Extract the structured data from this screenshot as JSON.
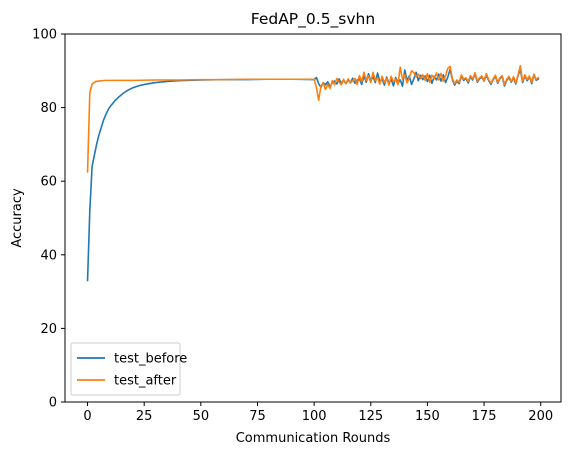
{
  "chart_data": {
    "type": "line",
    "title": "FedAP_0.5_svhn",
    "xlabel": "Communication Rounds",
    "ylabel": "Accuracy",
    "xlim": [
      -9.95,
      208.95
    ],
    "ylim": [
      0,
      100
    ],
    "xticks": [
      0,
      25,
      50,
      75,
      100,
      125,
      150,
      175,
      200
    ],
    "yticks": [
      0,
      20,
      40,
      60,
      80,
      100
    ],
    "grid": false,
    "legend_position": "lower-left",
    "series": [
      {
        "name": "test_before",
        "color": "#1f77b4",
        "x": [
          0,
          1,
          2,
          3,
          4,
          5,
          6,
          7,
          8,
          9,
          10,
          12,
          14,
          16,
          18,
          20,
          23,
          26,
          30,
          35,
          40,
          45,
          50,
          60,
          70,
          80,
          90,
          100,
          101,
          102,
          103,
          104,
          105,
          106,
          107,
          108,
          109,
          110,
          111,
          112,
          113,
          114,
          115,
          116,
          117,
          118,
          119,
          120,
          121,
          122,
          123,
          124,
          125,
          126,
          127,
          128,
          129,
          130,
          131,
          132,
          133,
          134,
          135,
          136,
          137,
          138,
          139,
          140,
          141,
          142,
          143,
          144,
          145,
          146,
          147,
          148,
          149,
          150,
          151,
          152,
          153,
          154,
          155,
          156,
          157,
          158,
          159,
          160,
          161,
          162,
          163,
          164,
          165,
          166,
          167,
          168,
          169,
          170,
          171,
          172,
          173,
          174,
          175,
          176,
          177,
          178,
          179,
          180,
          181,
          182,
          183,
          184,
          185,
          186,
          187,
          188,
          189,
          190,
          191,
          192,
          193,
          194,
          195,
          196,
          197,
          198,
          199
        ],
        "y": [
          33,
          52,
          64,
          67,
          70,
          72.5,
          74.5,
          76.5,
          78,
          79.3,
          80.3,
          81.8,
          83,
          84,
          84.8,
          85.4,
          86,
          86.4,
          86.8,
          87.1,
          87.3,
          87.4,
          87.5,
          87.6,
          87.6,
          87.7,
          87.7,
          87.6,
          88.2,
          86.5,
          85.5,
          86.8,
          86.2,
          87,
          85.6,
          86.8,
          87.2,
          86.4,
          87.8,
          86.6,
          87.4,
          86.5,
          87.6,
          86.7,
          88,
          86.6,
          87.5,
          87.8,
          86.3,
          88.6,
          86.9,
          89.2,
          87.2,
          88.4,
          86.8,
          89.4,
          87,
          87.8,
          86.1,
          88.3,
          86.6,
          87.7,
          85.9,
          88.2,
          86.7,
          87.5,
          85.8,
          90.2,
          87.4,
          88.6,
          86.3,
          87.8,
          89.6,
          87.3,
          88.8,
          87.6,
          88.6,
          87.1,
          88.8,
          86.6,
          88.5,
          87.5,
          89.1,
          87.2,
          88.9,
          86.8,
          88.3,
          90.4,
          87.6,
          86.1,
          87.2,
          86.5,
          88.6,
          87.4,
          87.9,
          86.7,
          88.4,
          87.5,
          89.2,
          86.9,
          87.8,
          88.3,
          87.2,
          88.8,
          87.4,
          86.3,
          87.6,
          88.5,
          86.6,
          87.9,
          88.4,
          85.9,
          87.4,
          88.2,
          86.9,
          88.1,
          86.4,
          88.7,
          90.4,
          86.8,
          88.6,
          87.3,
          88.4,
          86.5,
          88.9,
          87.4,
          87.8
        ]
      },
      {
        "name": "test_after",
        "color": "#ff7f0e",
        "x": [
          0,
          1,
          2,
          3,
          4,
          5,
          6,
          8,
          10,
          15,
          20,
          30,
          40,
          50,
          60,
          70,
          80,
          90,
          100,
          101,
          102,
          103,
          104,
          105,
          106,
          107,
          108,
          109,
          110,
          111,
          112,
          113,
          114,
          115,
          116,
          117,
          118,
          119,
          120,
          121,
          122,
          123,
          124,
          125,
          126,
          127,
          128,
          129,
          130,
          131,
          132,
          133,
          134,
          135,
          136,
          137,
          138,
          139,
          140,
          141,
          142,
          143,
          144,
          145,
          146,
          147,
          148,
          149,
          150,
          151,
          152,
          153,
          154,
          155,
          156,
          157,
          158,
          159,
          160,
          161,
          162,
          163,
          164,
          165,
          166,
          167,
          168,
          169,
          170,
          171,
          172,
          173,
          174,
          175,
          176,
          177,
          178,
          179,
          180,
          181,
          182,
          183,
          184,
          185,
          186,
          187,
          188,
          189,
          190,
          191,
          192,
          193,
          194,
          195,
          196,
          197,
          198,
          199
        ],
        "y": [
          62.5,
          84,
          86.4,
          86.9,
          87.1,
          87.2,
          87.3,
          87.4,
          87.4,
          87.4,
          87.4,
          87.5,
          87.5,
          87.6,
          87.6,
          87.7,
          87.7,
          87.7,
          87.7,
          85.5,
          82,
          85.8,
          86.8,
          84.9,
          86.3,
          85.2,
          87.3,
          86.2,
          87.9,
          87,
          86.2,
          87.7,
          86.5,
          87.8,
          86.8,
          87.3,
          87.9,
          86.3,
          88.7,
          87,
          89.6,
          87.4,
          88.6,
          86.8,
          89.6,
          87.3,
          88.1,
          86.4,
          88.5,
          86.8,
          88,
          86.1,
          88.5,
          87,
          87.8,
          86.2,
          91,
          87.7,
          88.9,
          86.7,
          88.1,
          90,
          89.5,
          88.4,
          89.1,
          87.9,
          88.9,
          87.4,
          89.2,
          86.9,
          88.8,
          87.9,
          89.4,
          87.5,
          89.3,
          87.2,
          88.6,
          90.7,
          91.2,
          87.9,
          86.5,
          87.5,
          86.9,
          88.9,
          87.7,
          88.1,
          87.1,
          88.7,
          87.8,
          89.5,
          87.2,
          88.1,
          88.6,
          87.4,
          89.2,
          87.7,
          86.6,
          87.8,
          88.8,
          86.9,
          88.1,
          88.7,
          86.3,
          87.7,
          88.5,
          87.1,
          88.4,
          86.7,
          88.9,
          91.4,
          87.1,
          88.9,
          87.6,
          88.6,
          86.9,
          89.1,
          87.6,
          88.2
        ]
      }
    ]
  }
}
